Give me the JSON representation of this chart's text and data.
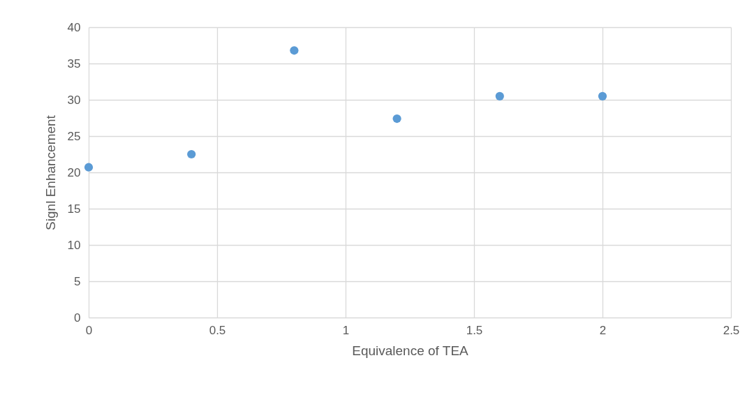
{
  "chart_data": {
    "type": "scatter",
    "xlabel": "Equivalence of TEA",
    "ylabel": "Signl Enhancement",
    "x": [
      0,
      0.4,
      0.8,
      1.2,
      1.6,
      2.0
    ],
    "series": [
      {
        "color": "#5b9bd5",
        "values": [
          20.7,
          22.5,
          36.8,
          27.4,
          30.5,
          30.5
        ]
      }
    ],
    "xlim": [
      0,
      2.5
    ],
    "xticks": [
      0,
      0.5,
      1,
      1.5,
      2,
      2.5
    ],
    "ylim": [
      0,
      40
    ],
    "yticks": [
      0,
      5,
      10,
      15,
      20,
      25,
      30,
      35,
      40
    ],
    "grid": true,
    "marker": "circle",
    "legend": false
  }
}
